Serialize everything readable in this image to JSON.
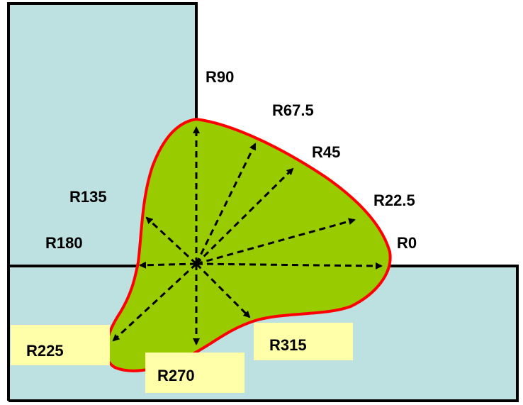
{
  "labels": {
    "r90": "R90",
    "r67_5": "R67.5",
    "r45": "R45",
    "r22_5": "R22.5",
    "r0": "R0",
    "r135": "R135",
    "r180": "R180",
    "r225": "R225",
    "r270": "R270",
    "r315": "R315"
  }
}
